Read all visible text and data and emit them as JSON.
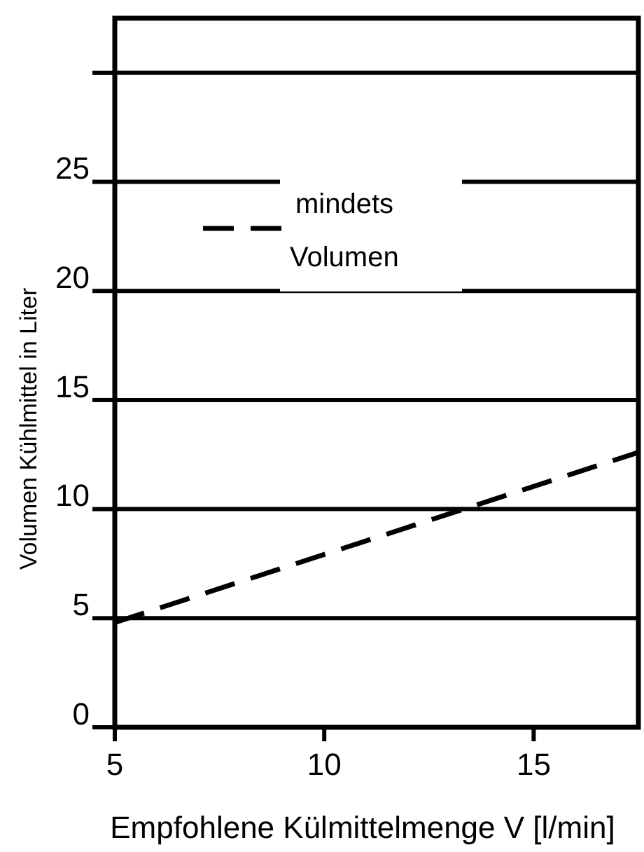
{
  "chart_data": {
    "type": "line",
    "xlabel": "Empfohlene Külmittelmenge V [l/min]",
    "ylabel": "Volumen Kühlmittel in Liter",
    "xlim": [
      5,
      17.5
    ],
    "xticks": [
      5,
      10,
      15
    ],
    "ylim": [
      0,
      32.5
    ],
    "yticks": [
      0,
      5,
      10,
      15,
      20,
      25,
      {
        "value": 30,
        "label": null
      }
    ],
    "grid": "y",
    "legend": "top",
    "line_style": "dashed",
    "series": [
      {
        "name": "mindets Volumen",
        "color": "#000000",
        "x": [
          5,
          17.5
        ],
        "values": [
          4.8,
          12.6
        ]
      }
    ]
  }
}
